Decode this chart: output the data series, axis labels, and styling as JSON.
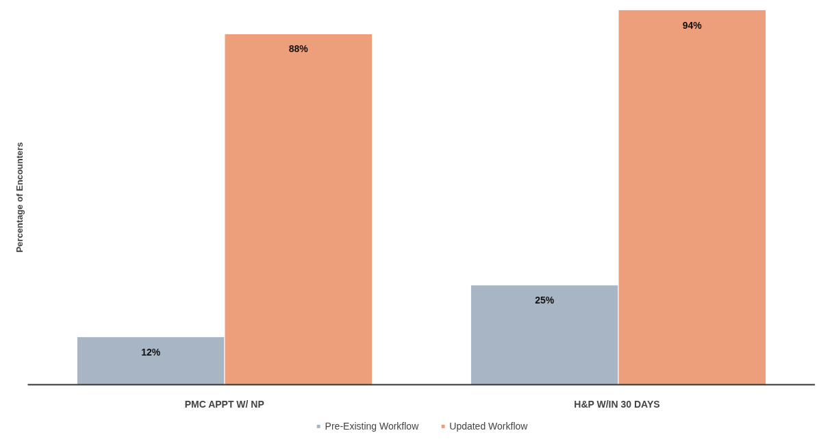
{
  "chart_data": {
    "type": "bar",
    "ylabel": "Percentage of Encounters",
    "categories": [
      "PMC APPT W/ NP",
      "H&P  W/IN 30 DAYS"
    ],
    "series": [
      {
        "name": "Pre-Existing Workflow",
        "color": "#a7b5c4",
        "values": [
          12,
          25
        ],
        "value_labels": [
          "12%",
          "25%"
        ]
      },
      {
        "name": "Updated Workflow",
        "color": "#ed9e7a",
        "values": [
          88,
          94
        ],
        "value_labels": [
          "88%",
          "94%"
        ]
      }
    ],
    "grid": false,
    "legend": "bottom"
  }
}
